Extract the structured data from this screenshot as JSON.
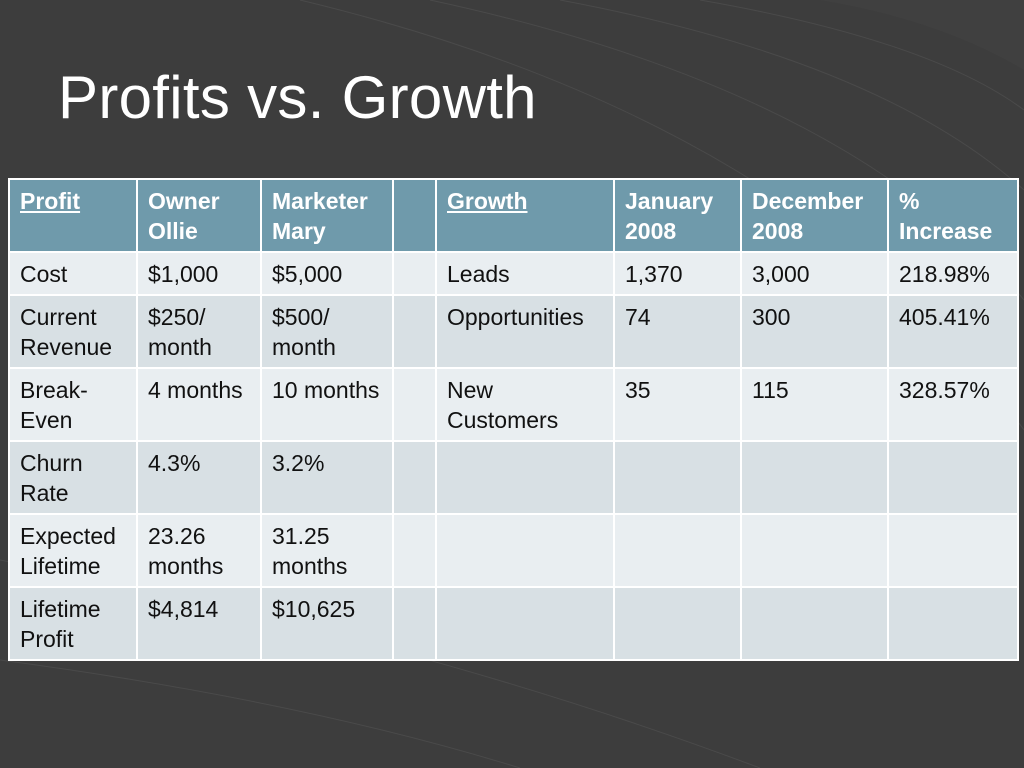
{
  "slide": {
    "title": "Profits vs. Growth"
  },
  "colors": {
    "background": "#3d3d3d",
    "header_fill": "#6f9aab",
    "row_fill_light": "#e9eef1",
    "row_fill_band": "#d8e0e4",
    "text_header": "#ffffff",
    "text_body": "#111111"
  },
  "table": {
    "headers": [
      "Profit",
      "Owner Ollie",
      "Marketer Mary",
      "",
      "Growth",
      "January 2008",
      "December 2008",
      "% Increase"
    ],
    "rows": [
      [
        "Cost",
        "$1,000",
        "$5,000",
        "",
        "Leads",
        "1,370",
        "3,000",
        "218.98%"
      ],
      [
        "Current Revenue",
        "$250/ month",
        "$500/ month",
        "",
        "Opportunities",
        "74",
        "300",
        "405.41%"
      ],
      [
        "Break-Even",
        "4 months",
        "10 months",
        "",
        "New Customers",
        "35",
        "115",
        "328.57%"
      ],
      [
        "Churn Rate",
        "4.3%",
        "3.2%",
        "",
        "",
        "",
        "",
        ""
      ],
      [
        "Expected Lifetime",
        "23.26 months",
        "31.25 months",
        "",
        "",
        "",
        "",
        ""
      ],
      [
        "Lifetime Profit",
        "$4,814",
        "$10,625",
        "",
        "",
        "",
        "",
        ""
      ]
    ]
  }
}
